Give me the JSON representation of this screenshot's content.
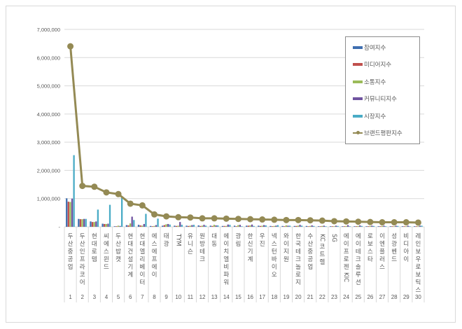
{
  "chart_data": {
    "type": "bar+line",
    "title": "",
    "xlabel": "",
    "ylabel": "",
    "ylim": [
      0,
      7000000
    ],
    "yticks": [
      "-",
      "1,000,000",
      "2,000,000",
      "3,000,000",
      "4,000,000",
      "5,000,000",
      "6,000,000",
      "7,000,000"
    ],
    "grid": true,
    "legend_position": "top-right",
    "ranks": [
      "1",
      "2",
      "3",
      "4",
      "5",
      "6",
      "7",
      "8",
      "9",
      "10",
      "11",
      "12",
      "13",
      "14",
      "15",
      "16",
      "17",
      "18",
      "19",
      "20",
      "21",
      "22",
      "23",
      "24",
      "25",
      "26",
      "27",
      "28",
      "29",
      "30"
    ],
    "categories": [
      "두산중공업",
      "두산인프라코어",
      "현대로템",
      "씨에스윈드",
      "두산밥캣",
      "현대건설기계",
      "현대엘리베이터",
      "에스에프에이",
      "태광",
      "TYM",
      "유니슨",
      "원방테크",
      "대동",
      "에이치엘비파워",
      "광림",
      "한신기계",
      "우진",
      "넥스턴바이오",
      "와이지원",
      "한국테크놀로지",
      "수산중공업",
      "KC코트렐",
      "SG",
      "에이프로젠KIC",
      "에이테크솔루션",
      "로보스타",
      "이엔플러스",
      "성광벤드",
      "비디아이",
      "레인보우로보틱스"
    ],
    "series": [
      {
        "name": "참여지수",
        "type": "bar",
        "color": "#3f6fb0",
        "values": [
          1010000,
          280000,
          190000,
          110000,
          20000,
          60000,
          70000,
          30000,
          40000,
          40000,
          40000,
          50000,
          40000,
          30000,
          40000,
          40000,
          40000,
          30000,
          30000,
          30000,
          30000,
          20000,
          20000,
          20000,
          20000,
          20000,
          20000,
          20000,
          20000,
          20000
        ]
      },
      {
        "name": "미디어지수",
        "type": "bar",
        "color": "#c0504d",
        "values": [
          890000,
          270000,
          170000,
          100000,
          20000,
          50000,
          50000,
          20000,
          60000,
          30000,
          30000,
          30000,
          30000,
          30000,
          20000,
          40000,
          30000,
          20000,
          20000,
          30000,
          20000,
          20000,
          20000,
          20000,
          20000,
          20000,
          20000,
          20000,
          20000,
          20000
        ]
      },
      {
        "name": "소통지수",
        "type": "bar",
        "color": "#9bbb59",
        "values": [
          880000,
          270000,
          170000,
          100000,
          40000,
          120000,
          40000,
          30000,
          90000,
          40000,
          40000,
          40000,
          70000,
          30000,
          60000,
          50000,
          40000,
          30000,
          50000,
          40000,
          30000,
          30000,
          20000,
          30000,
          30000,
          30000,
          30000,
          20000,
          20000,
          20000
        ]
      },
      {
        "name": "커뮤니티지수",
        "type": "bar",
        "color": "#7054a0",
        "values": [
          1000000,
          280000,
          190000,
          110000,
          30000,
          360000,
          100000,
          60000,
          100000,
          170000,
          60000,
          70000,
          50000,
          80000,
          70000,
          80000,
          60000,
          40000,
          40000,
          70000,
          50000,
          40000,
          40000,
          60000,
          50000,
          40000,
          40000,
          40000,
          40000,
          40000
        ]
      },
      {
        "name": "시장지수",
        "type": "bar",
        "color": "#4aacc6",
        "values": [
          2540000,
          280000,
          610000,
          780000,
          1030000,
          240000,
          460000,
          290000,
          80000,
          70000,
          70000,
          40000,
          50000,
          70000,
          20000,
          30000,
          50000,
          60000,
          40000,
          40000,
          30000,
          20000,
          30000,
          20000,
          30000,
          30000,
          20000,
          30000,
          20000,
          40000
        ]
      },
      {
        "name": "브랜드평판지수",
        "type": "line",
        "color": "#948a54",
        "values": [
          6400000,
          1450000,
          1420000,
          1220000,
          1160000,
          820000,
          760000,
          440000,
          370000,
          340000,
          330000,
          300000,
          300000,
          290000,
          280000,
          270000,
          260000,
          250000,
          240000,
          240000,
          230000,
          220000,
          200000,
          190000,
          180000,
          170000,
          160000,
          160000,
          160000,
          150000
        ]
      }
    ]
  },
  "legend": {
    "items": [
      {
        "label": "참여지수",
        "color": "#3f6fb0",
        "kind": "bar"
      },
      {
        "label": "미디어지수",
        "color": "#c0504d",
        "kind": "bar"
      },
      {
        "label": "소통지수",
        "color": "#9bbb59",
        "kind": "bar"
      },
      {
        "label": "커뮤니티지수",
        "color": "#7054a0",
        "kind": "bar"
      },
      {
        "label": "시장지수",
        "color": "#4aacc6",
        "kind": "bar"
      },
      {
        "label": "브랜드평판지수",
        "color": "#948a54",
        "kind": "line"
      }
    ]
  }
}
